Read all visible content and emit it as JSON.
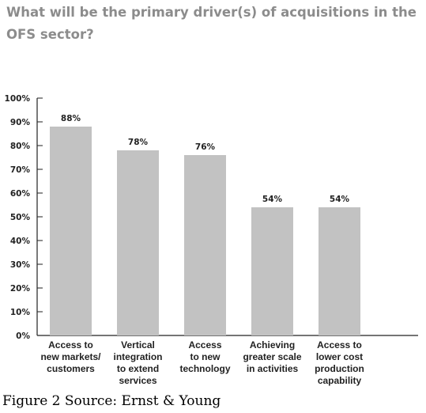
{
  "chart_data": {
    "type": "bar",
    "title": "What will be the primary driver(s) of acquisitions in the OFS sector?",
    "categories": [
      [
        "Access to",
        "new markets/",
        "customers"
      ],
      [
        "Vertical",
        "integration",
        "to extend",
        "services"
      ],
      [
        "Access",
        "to new",
        "technology"
      ],
      [
        "Achieving",
        "greater scale",
        "in activities"
      ],
      [
        "Access to",
        "lower cost",
        "production",
        "capability"
      ]
    ],
    "values": [
      88,
      78,
      76,
      54,
      54
    ],
    "value_labels": [
      "88%",
      "78%",
      "76%",
      "54%",
      "54%"
    ],
    "ylim": [
      0,
      100
    ],
    "yticks": [
      "0%",
      "10%",
      "20%",
      "30%",
      "40%",
      "50%",
      "60%",
      "70%",
      "80%",
      "90%",
      "100%"
    ],
    "grid": false,
    "bar_color": "#c2c2c2"
  },
  "caption": "Figure 2 Source: Ernst & Young"
}
